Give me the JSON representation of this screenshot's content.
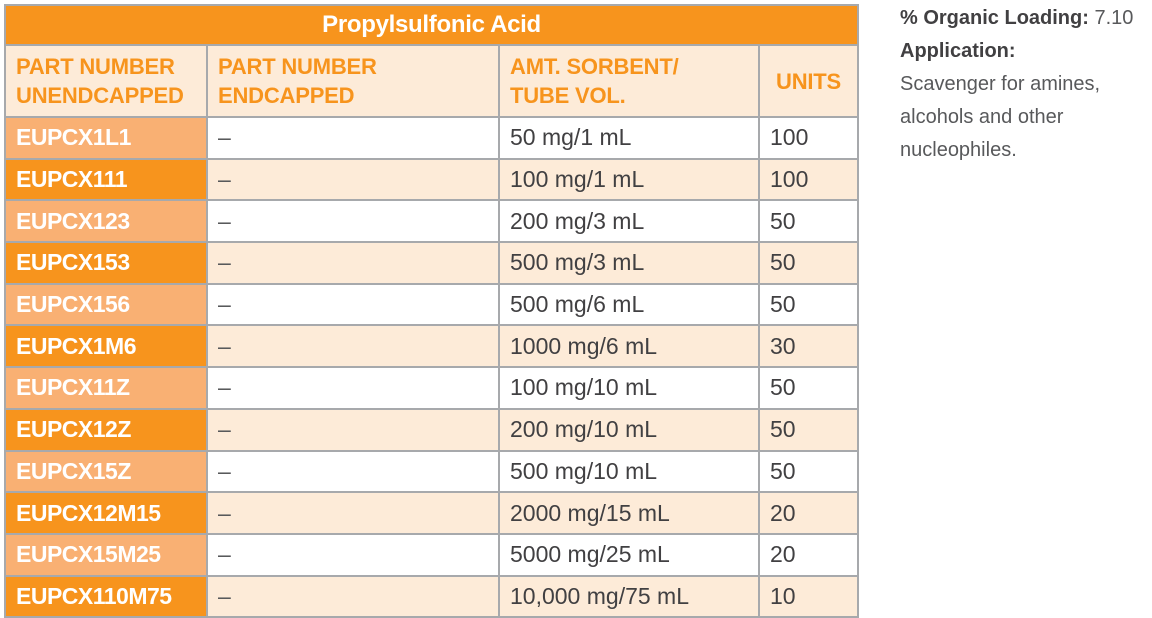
{
  "table": {
    "title": "Propylsulfonic Acid",
    "headers": {
      "col1_line1": "PART NUMBER",
      "col1_line2": "UNENDCAPPED",
      "col2_line1": "PART NUMBER",
      "col2_line2": "ENDCAPPED",
      "col3_line1": "AMT. SORBENT/",
      "col3_line2": "TUBE VOL.",
      "col4": "UNITS"
    },
    "rows": [
      {
        "unendcapped": "EUPCX1L1",
        "endcapped": "–",
        "amount": "50 mg/1 mL",
        "units": "100"
      },
      {
        "unendcapped": "EUPCX111",
        "endcapped": "–",
        "amount": "100 mg/1 mL",
        "units": "100"
      },
      {
        "unendcapped": "EUPCX123",
        "endcapped": "–",
        "amount": "200 mg/3 mL",
        "units": "50"
      },
      {
        "unendcapped": "EUPCX153",
        "endcapped": "–",
        "amount": "500 mg/3 mL",
        "units": "50"
      },
      {
        "unendcapped": "EUPCX156",
        "endcapped": "–",
        "amount": "500 mg/6 mL",
        "units": "50"
      },
      {
        "unendcapped": "EUPCX1M6",
        "endcapped": "–",
        "amount": "1000 mg/6 mL",
        "units": "30"
      },
      {
        "unendcapped": "EUPCX11Z",
        "endcapped": "–",
        "amount": "100 mg/10 mL",
        "units": "50"
      },
      {
        "unendcapped": "EUPCX12Z",
        "endcapped": "–",
        "amount": "200 mg/10 mL",
        "units": "50"
      },
      {
        "unendcapped": "EUPCX15Z",
        "endcapped": "–",
        "amount": "500 mg/10 mL",
        "units": "50"
      },
      {
        "unendcapped": "EUPCX12M15",
        "endcapped": "–",
        "amount": "2000 mg/15 mL",
        "units": "20"
      },
      {
        "unendcapped": "EUPCX15M25",
        "endcapped": "–",
        "amount": "5000 mg/25 mL",
        "units": "20"
      },
      {
        "unendcapped": "EUPCX110M75",
        "endcapped": "–",
        "amount": "10,000 mg/75 mL",
        "units": "10"
      }
    ]
  },
  "side_panel": {
    "loading_label": "% Organic Loading",
    "loading_colon": ":",
    "loading_value": " 7.10",
    "application_label": "Application:",
    "application_text": "Scavenger for amines, alcohols and other nucleophiles."
  },
  "colors": {
    "accent_orange": "#f7941d",
    "light_orange": "#f9b073",
    "pale_orange": "#fdebd8",
    "border_gray": "#a7a9ac"
  }
}
